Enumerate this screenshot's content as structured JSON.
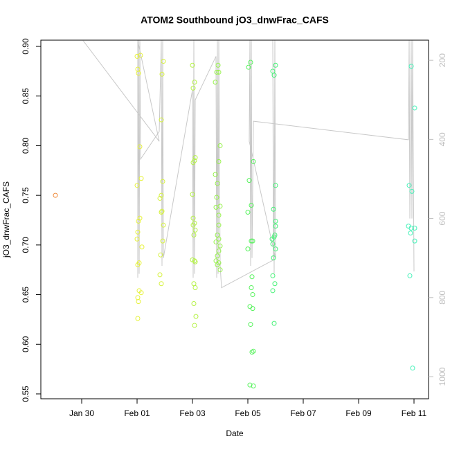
{
  "chart_data": {
    "type": "scatter",
    "title": "ATOM2 Southbound jO3_dnwFrac_CAFS",
    "x_label": "Date",
    "y_label": "jO3_dnwFrac_CAFS",
    "xlim": [
      28.525,
      42.525
    ],
    "xticks": [
      {
        "value": 30,
        "label": "Jan 30"
      },
      {
        "value": 32,
        "label": "Feb 01"
      },
      {
        "value": 34,
        "label": "Feb 03"
      },
      {
        "value": 36,
        "label": "Feb 05"
      },
      {
        "value": 38,
        "label": "Feb 07"
      },
      {
        "value": 40,
        "label": "Feb 09"
      },
      {
        "value": 42,
        "label": "Feb 11"
      }
    ],
    "ylim": [
      0.5451,
      0.9063
    ],
    "yticks": [
      0.55,
      {
        "value": 0.6,
        "label": "0.60"
      },
      0.65,
      {
        "value": 0.7,
        "label": "0.70"
      },
      0.75,
      {
        "value": 0.8,
        "label": "0.80"
      },
      0.85,
      {
        "value": 0.9,
        "label": "0.90"
      }
    ],
    "y2lim": [
      1056,
      149
    ],
    "y2ticks": [
      200,
      400,
      600,
      800,
      1000
    ],
    "y2color": "#bebebe",
    "series": [
      {
        "type": "line",
        "axis": "y2",
        "color": "#c8c8c8",
        "x": [
          30.05,
          32.8,
          32.025,
          32.025,
          32.05,
          32.075,
          32.1,
          32.125,
          32.8,
          32.875,
          32.9,
          32.925,
          32.95,
          34.0,
          34.025,
          34.05,
          34.075,
          34.1,
          34.85,
          34.875,
          34.9,
          34.925,
          34.95,
          35.0,
          35.05,
          36.925,
          36.9,
          36.95,
          36.975,
          37.0,
          36.05,
          36.075,
          36.1,
          36.125,
          36.15,
          36.2,
          41.8,
          41.825,
          41.85,
          41.9,
          41.925,
          41.95,
          42.0
        ],
        "values": [
          150,
          405,
          150,
          750,
          150,
          740,
          150,
          450,
          380,
          150,
          720,
          150,
          700,
          275,
          750,
          150,
          740,
          300,
          190,
          750,
          150,
          740,
          150,
          720,
          775,
          705,
          150,
          740,
          150,
          700,
          405,
          150,
          720,
          150,
          700,
          354,
          401,
          150,
          600,
          150,
          600,
          150,
          734
        ]
      },
      {
        "color": "#f08a3a",
        "x": [
          29.05
        ],
        "values": [
          0.75
        ]
      },
      {
        "color": "#e6f23a",
        "x": [
          32.025,
          32.05,
          32.125,
          32.0,
          32.15,
          32.0,
          32.1,
          32.025,
          32.0,
          32.175,
          32.075,
          32.025,
          32.075,
          32.15,
          32.025,
          32.05,
          32.025,
          32.1,
          32.05
        ],
        "values": [
          0.877,
          0.873,
          0.891,
          0.89,
          0.767,
          0.76,
          0.727,
          0.713,
          0.706,
          0.698,
          0.682,
          0.68,
          0.654,
          0.652,
          0.647,
          0.643,
          0.626,
          0.799,
          0.724
        ]
      },
      {
        "color": "#d6f23e",
        "x": [
          32.95,
          32.9,
          32.875,
          32.925,
          32.875,
          32.825,
          32.9,
          32.95,
          32.925,
          32.85,
          32.825,
          32.875,
          32.875
        ],
        "values": [
          0.885,
          0.872,
          0.826,
          0.764,
          0.75,
          0.747,
          0.734,
          0.72,
          0.704,
          0.69,
          0.67,
          0.661,
          0.733
        ]
      },
      {
        "color": "#b4f244",
        "x": [
          34.0,
          34.075,
          34.025,
          34.1,
          34.075,
          34.025,
          34.0,
          34.025,
          34.075,
          34.025,
          34.1,
          34.05,
          34.0,
          34.075,
          34.1,
          34.05,
          34.1,
          34.05,
          34.125,
          34.075
        ],
        "values": [
          0.881,
          0.864,
          0.858,
          0.788,
          0.785,
          0.783,
          0.751,
          0.727,
          0.722,
          0.72,
          0.715,
          0.71,
          0.685,
          0.684,
          0.683,
          0.661,
          0.657,
          0.641,
          0.628,
          0.619
        ]
      },
      {
        "color": "#96f24a",
        "x": [
          34.925,
          34.875,
          34.95,
          34.825,
          35.0,
          34.95,
          34.825,
          34.9,
          34.875,
          34.85,
          35.0,
          34.95,
          34.95,
          34.9,
          34.95,
          34.85,
          35.0,
          34.95,
          34.9,
          34.85,
          34.95,
          35.0,
          34.9
        ],
        "values": [
          0.881,
          0.874,
          0.874,
          0.864,
          0.8,
          0.784,
          0.771,
          0.762,
          0.748,
          0.738,
          0.739,
          0.73,
          0.72,
          0.71,
          0.706,
          0.703,
          0.699,
          0.694,
          0.689,
          0.684,
          0.682,
          0.675,
          0.68
        ]
      },
      {
        "color": "#56f25c",
        "x": [
          36.1,
          36.025,
          36.05,
          36.125,
          36.2,
          36.0,
          36.125,
          36.175,
          36.0,
          36.15,
          36.125,
          36.175,
          36.075,
          36.175,
          36.1,
          36.15,
          36.2,
          36.075,
          36.2
        ],
        "values": [
          0.884,
          0.879,
          0.765,
          0.74,
          0.784,
          0.733,
          0.704,
          0.704,
          0.696,
          0.668,
          0.657,
          0.65,
          0.638,
          0.636,
          0.62,
          0.592,
          0.593,
          0.559,
          0.558
        ]
      },
      {
        "color": "#44f276",
        "x": [
          37.0,
          36.9,
          36.95,
          37.0,
          36.925,
          37.0,
          37.0,
          36.95,
          36.875,
          36.9,
          36.975,
          37.0,
          36.9,
          36.975,
          36.9,
          36.95,
          36.925
        ],
        "values": [
          0.881,
          0.875,
          0.871,
          0.76,
          0.736,
          0.724,
          0.719,
          0.708,
          0.706,
          0.701,
          0.71,
          0.696,
          0.669,
          0.661,
          0.654,
          0.621,
          0.687
        ]
      },
      {
        "color": "#44f2b8",
        "x": [
          41.9,
          42.025,
          41.825,
          41.925,
          41.8,
          41.9,
          42.025,
          41.875,
          42.025,
          41.85,
          41.95
        ],
        "values": [
          0.88,
          0.838,
          0.76,
          0.754,
          0.719,
          0.717,
          0.717,
          0.712,
          0.704,
          0.669,
          0.576
        ]
      }
    ]
  }
}
